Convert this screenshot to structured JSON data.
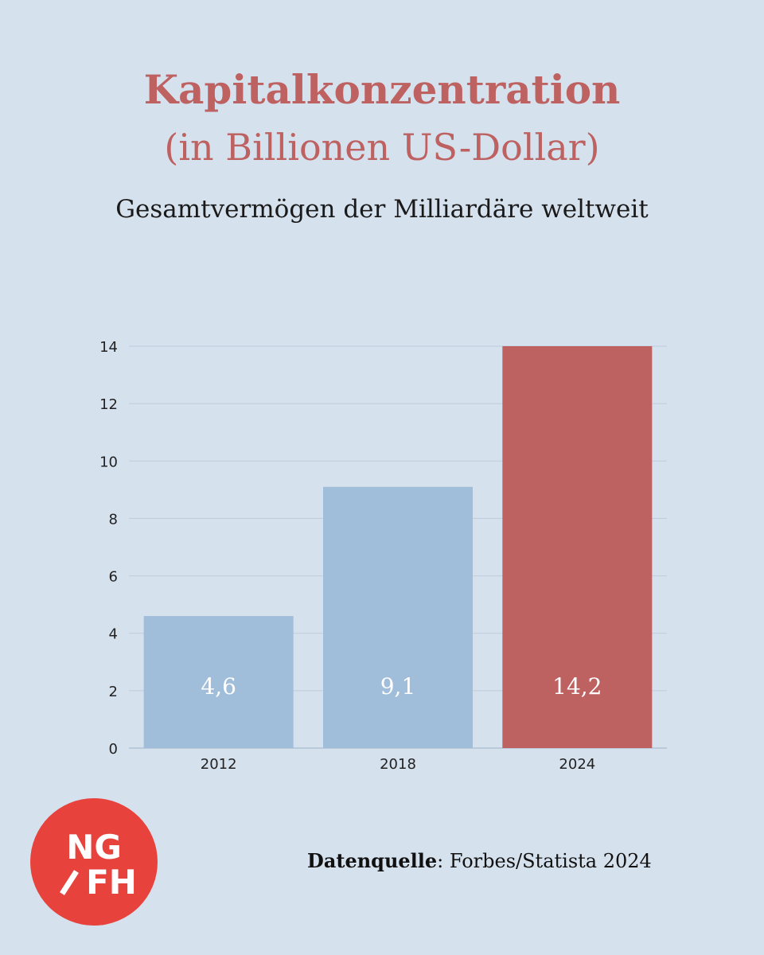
{
  "header": {
    "title": "Kapitalkonzentration",
    "subtitle": "(in Billionen US-Dollar)",
    "caption": "Gesamtvermögen der Milliardäre weltweit"
  },
  "source": {
    "label": "Datenquelle",
    "text": ": Forbes/Statista 2024"
  },
  "logo": {
    "top": "NG",
    "bottom": "FH",
    "color": "#e8423d"
  },
  "colors": {
    "background": "#d6e1ee",
    "bar_default": "#a0bdda",
    "bar_highlight": "#bd6161",
    "title": "#bd6161",
    "grid": "#bfcbdc"
  },
  "chart_data": {
    "type": "bar",
    "title": "Kapitalkonzentration",
    "categories": [
      "2012",
      "2018",
      "2024"
    ],
    "values": [
      4.6,
      9.1,
      14.2
    ],
    "data_labels": [
      "4,6",
      "9,1",
      "14,2"
    ],
    "highlight_index": 2,
    "ylim": [
      0,
      14
    ],
    "yticks": [
      0,
      2,
      4,
      6,
      8,
      10,
      12,
      14
    ],
    "grid": true,
    "xlabel": "",
    "ylabel": ""
  }
}
